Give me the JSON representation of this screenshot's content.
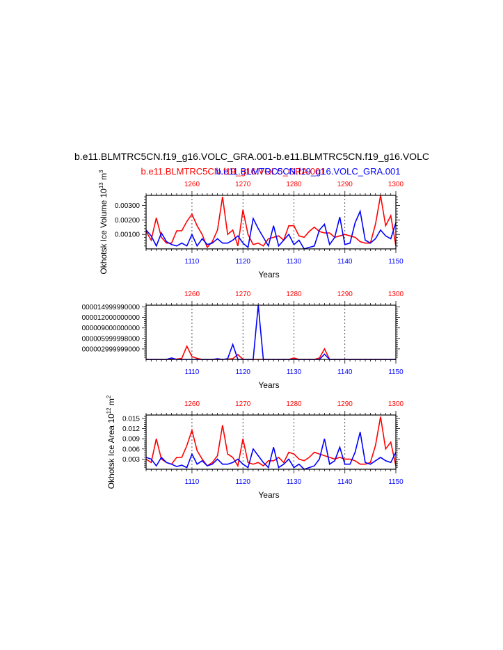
{
  "figure": {
    "title": "b.e11.BLMTRC5CN.f19_g16.VOLC_GRA.001-b.e11.BLMTRC5CN.f19_g16.VOLC",
    "legend_left": "b.e11.BLMTRC5CN.f19_g16.VOLC_GRA.001",
    "legend_right": "b.e11.BLMTRC5CN.f19_g16.VOLC_GRA.001",
    "colors": {
      "red": "#ff0000",
      "blue": "#0000ff",
      "axis": "#000000"
    }
  },
  "chart_data": [
    {
      "type": "line",
      "title": "",
      "ylabel": "Okhotsk Ice Volume 10^13 m^3",
      "xlabel": "Years",
      "top_ticks": [
        "1260",
        "1270",
        "1280",
        "1290",
        "1300"
      ],
      "bottom_ticks": [
        "1110",
        "1120",
        "1130",
        "1140",
        "1150"
      ],
      "y_ticks": [
        "0.00100",
        "0.00200",
        "0.00300"
      ],
      "xlim": [
        1101,
        1150
      ],
      "ylim": [
        0,
        0.0037
      ],
      "grid": "dashed vertical lines at 1110, 1120, 1130, 1140",
      "series": [
        {
          "color": "red",
          "x_start": 1101,
          "values": [
            0.0012,
            0.0006,
            0.00215,
            0.0008,
            0.0004,
            0.0004,
            0.00125,
            0.00125,
            0.0019,
            0.0024,
            0.0016,
            0.001,
            0.0001,
            0.0005,
            0.0013,
            0.0036,
            0.001,
            0.0013,
            0.0002,
            0.0027,
            0.001,
            0.0003,
            0.0004,
            0.0002,
            0.0007,
            0.0008,
            0.0009,
            0.0006,
            0.0016,
            0.0016,
            0.0009,
            0.0008,
            0.0012,
            0.0015,
            0.0012,
            0.0011,
            0.0011,
            0.0008,
            0.0009,
            0.001,
            0.0009,
            0.0008,
            0.0005,
            0.0004,
            0.0004,
            0.0017,
            0.0037,
            0.0016,
            0.0023,
            0.0002
          ]
        },
        {
          "color": "blue",
          "x_start": 1101,
          "values": [
            0.0013,
            0.0009,
            0.0002,
            0.0011,
            0.0005,
            0.0003,
            0.0002,
            0.0004,
            0.0002,
            0.001,
            0.0002,
            0.0007,
            0.0003,
            0.0004,
            0.0007,
            0.0004,
            0.0004,
            0.0006,
            0.0009,
            0.0004,
            0.0001,
            0.0021,
            0.0014,
            0.0008,
            0.0002,
            0.0016,
            0.0002,
            0.0006,
            0.001,
            0.0003,
            0.0006,
            0.0,
            0.0001,
            0.0002,
            0.0013,
            0.0017,
            0.0003,
            0.0008,
            0.0022,
            0.0003,
            0.0004,
            0.0018,
            0.0026,
            0.0006,
            0.0004,
            0.0007,
            0.0013,
            0.0009,
            0.0007,
            0.0018
          ]
        }
      ]
    },
    {
      "type": "line",
      "title": "",
      "ylabel": "",
      "xlabel": "Years",
      "top_ticks": [
        "1260",
        "1270",
        "1280",
        "1290",
        "1300"
      ],
      "bottom_ticks": [
        "1110",
        "1120",
        "1130",
        "1140",
        "1150"
      ],
      "y_ticks": [
        "000002999999000",
        "000005999998000",
        "000009000000000",
        "000012000000000",
        "000014999990000"
      ],
      "xlim": [
        1101,
        1150
      ],
      "ylim": [
        0,
        1.55
      ],
      "grid": "dashed vertical lines at 1110, 1120, 1130, 1140",
      "series": [
        {
          "color": "red",
          "x_start": 1101,
          "values": [
            0,
            0,
            0,
            0,
            0,
            0,
            0.01,
            0.03,
            0.38,
            0.08,
            0.03,
            0,
            0,
            0,
            0,
            0,
            0.01,
            0.02,
            0.14,
            0,
            0,
            0,
            0,
            0,
            0,
            0,
            0,
            0,
            0,
            0.04,
            0,
            0,
            0,
            0,
            0.04,
            0.3,
            0,
            0,
            0,
            0,
            0,
            0,
            0,
            0,
            0,
            0,
            0,
            0,
            0,
            0
          ]
        },
        {
          "color": "blue",
          "x_start": 1101,
          "values": [
            0,
            0,
            0,
            0,
            0,
            0.04,
            0,
            0,
            0,
            0,
            0,
            0,
            0,
            0,
            0.02,
            0,
            0.02,
            0.43,
            0,
            0,
            0,
            0,
            1.55,
            0,
            0,
            0,
            0,
            0,
            0,
            0,
            0,
            0,
            0,
            0,
            0,
            0.15,
            0,
            0,
            0,
            0,
            0,
            0,
            0,
            0,
            0,
            0,
            0,
            0,
            0,
            0
          ]
        }
      ]
    },
    {
      "type": "line",
      "title": "",
      "ylabel": "Okhotsk Ice Area 10^12 m^2",
      "xlabel": "Years",
      "top_ticks": [
        "1260",
        "1270",
        "1280",
        "1290",
        "1300"
      ],
      "bottom_ticks": [
        "1110",
        "1120",
        "1130",
        "1140",
        "1150"
      ],
      "y_ticks": [
        "0.003",
        "0.006",
        "0.009",
        "0.012",
        "0.015"
      ],
      "xlim": [
        1101,
        1150
      ],
      "ylim": [
        0,
        0.016
      ],
      "grid": "dashed vertical lines at 1110, 1120, 1130, 1140",
      "series": [
        {
          "color": "red",
          "x_start": 1101,
          "values": [
            0.003,
            0.002,
            0.009,
            0.003,
            0.002,
            0.0015,
            0.0035,
            0.0035,
            0.007,
            0.0115,
            0.0055,
            0.003,
            0.001,
            0.002,
            0.004,
            0.013,
            0.0045,
            0.0035,
            0.001,
            0.009,
            0.002,
            0.0015,
            0.002,
            0.001,
            0.0025,
            0.0025,
            0.0035,
            0.002,
            0.005,
            0.0045,
            0.003,
            0.0025,
            0.0035,
            0.005,
            0.0045,
            0.004,
            0.0035,
            0.003,
            0.0035,
            0.003,
            0.003,
            0.0025,
            0.0015,
            0.0015,
            0.002,
            0.007,
            0.0155,
            0.006,
            0.008,
            0.001
          ]
        },
        {
          "color": "blue",
          "x_start": 1101,
          "values": [
            0.0035,
            0.003,
            0.001,
            0.0035,
            0.002,
            0.0015,
            0.0008,
            0.0012,
            0.0005,
            0.0045,
            0.0015,
            0.0025,
            0.001,
            0.0015,
            0.003,
            0.0015,
            0.0015,
            0.002,
            0.003,
            0.0015,
            0.0005,
            0.006,
            0.004,
            0.002,
            0.0005,
            0.0065,
            0.0005,
            0.0015,
            0.003,
            0.0005,
            0.0015,
            0.0,
            0.0005,
            0.001,
            0.003,
            0.009,
            0.0015,
            0.0025,
            0.0065,
            0.0015,
            0.0015,
            0.005,
            0.011,
            0.002,
            0.0015,
            0.0025,
            0.0035,
            0.0025,
            0.002,
            0.005
          ]
        }
      ]
    }
  ]
}
